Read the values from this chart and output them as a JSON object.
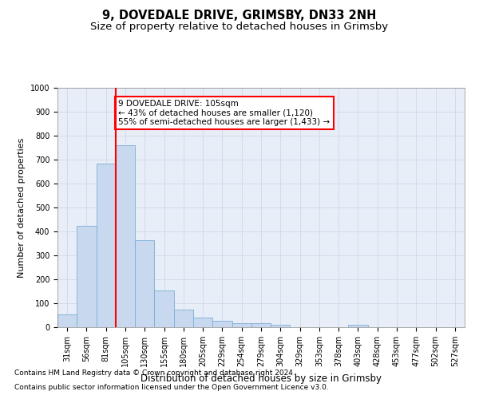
{
  "title1": "9, DOVEDALE DRIVE, GRIMSBY, DN33 2NH",
  "title2": "Size of property relative to detached houses in Grimsby",
  "xlabel": "Distribution of detached houses by size in Grimsby",
  "ylabel": "Number of detached properties",
  "categories": [
    "31sqm",
    "56sqm",
    "81sqm",
    "105sqm",
    "130sqm",
    "155sqm",
    "180sqm",
    "205sqm",
    "229sqm",
    "254sqm",
    "279sqm",
    "304sqm",
    "329sqm",
    "353sqm",
    "378sqm",
    "403sqm",
    "428sqm",
    "453sqm",
    "477sqm",
    "502sqm",
    "527sqm"
  ],
  "values": [
    52,
    422,
    685,
    760,
    362,
    153,
    75,
    40,
    28,
    16,
    16,
    10,
    0,
    0,
    0,
    9,
    0,
    0,
    0,
    0,
    0
  ],
  "bar_color": "#c8d9ef",
  "bar_edge_color": "#7aadd4",
  "vline_color": "red",
  "vline_index": 3,
  "annotation_text": "9 DOVEDALE DRIVE: 105sqm\n← 43% of detached houses are smaller (1,120)\n55% of semi-detached houses are larger (1,433) →",
  "annotation_box_color": "red",
  "ylim": [
    0,
    1000
  ],
  "yticks": [
    0,
    100,
    200,
    300,
    400,
    500,
    600,
    700,
    800,
    900,
    1000
  ],
  "grid_color": "#d0d8e8",
  "bg_color": "#e8eef8",
  "footer1": "Contains HM Land Registry data © Crown copyright and database right 2024.",
  "footer2": "Contains public sector information licensed under the Open Government Licence v3.0.",
  "title1_fontsize": 10.5,
  "title2_fontsize": 9.5,
  "xlabel_fontsize": 8.5,
  "ylabel_fontsize": 8,
  "tick_fontsize": 7,
  "annotation_fontsize": 7.5,
  "footer_fontsize": 6.5
}
